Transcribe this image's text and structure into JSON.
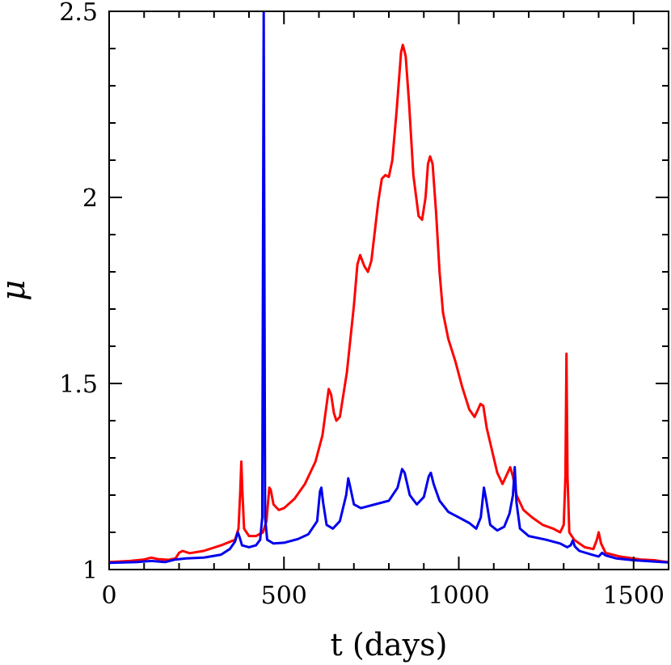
{
  "chart_data": {
    "type": "line",
    "title": "",
    "xlabel": "t (days)",
    "ylabel": "μ",
    "xlim": [
      0,
      1600
    ],
    "ylim": [
      1,
      2.5
    ],
    "x_ticks": [
      0,
      500,
      1000,
      1500
    ],
    "x_tick_labels": [
      "0",
      "500",
      "1000",
      "1500"
    ],
    "y_ticks": [
      1,
      1.5,
      2,
      2.5
    ],
    "y_tick_labels": [
      "1",
      "1.5",
      "2",
      "2.5"
    ],
    "grid": false,
    "legend": "none",
    "series": [
      {
        "color": "#ff0000",
        "points": [
          [
            0,
            1.02
          ],
          [
            60,
            1.023
          ],
          [
            100,
            1.027
          ],
          [
            120,
            1.032
          ],
          [
            140,
            1.028
          ],
          [
            170,
            1.026
          ],
          [
            190,
            1.03
          ],
          [
            200,
            1.045
          ],
          [
            210,
            1.05
          ],
          [
            230,
            1.044
          ],
          [
            270,
            1.05
          ],
          [
            320,
            1.065
          ],
          [
            360,
            1.08
          ],
          [
            370,
            1.11
          ],
          [
            375,
            1.21
          ],
          [
            378,
            1.29
          ],
          [
            381,
            1.21
          ],
          [
            386,
            1.11
          ],
          [
            400,
            1.09
          ],
          [
            420,
            1.09
          ],
          [
            440,
            1.1
          ],
          [
            450,
            1.13
          ],
          [
            458,
            1.22
          ],
          [
            462,
            1.215
          ],
          [
            470,
            1.175
          ],
          [
            485,
            1.16
          ],
          [
            500,
            1.165
          ],
          [
            530,
            1.19
          ],
          [
            560,
            1.23
          ],
          [
            590,
            1.29
          ],
          [
            610,
            1.36
          ],
          [
            620,
            1.43
          ],
          [
            628,
            1.485
          ],
          [
            635,
            1.47
          ],
          [
            643,
            1.42
          ],
          [
            650,
            1.4
          ],
          [
            660,
            1.41
          ],
          [
            680,
            1.53
          ],
          [
            700,
            1.71
          ],
          [
            710,
            1.82
          ],
          [
            718,
            1.845
          ],
          [
            730,
            1.815
          ],
          [
            740,
            1.8
          ],
          [
            750,
            1.83
          ],
          [
            770,
            1.99
          ],
          [
            780,
            2.05
          ],
          [
            790,
            2.06
          ],
          [
            800,
            2.055
          ],
          [
            810,
            2.1
          ],
          [
            822,
            2.23
          ],
          [
            835,
            2.39
          ],
          [
            840,
            2.41
          ],
          [
            848,
            2.38
          ],
          [
            858,
            2.25
          ],
          [
            870,
            2.06
          ],
          [
            885,
            1.95
          ],
          [
            895,
            1.94
          ],
          [
            905,
            2.0
          ],
          [
            912,
            2.09
          ],
          [
            918,
            2.11
          ],
          [
            925,
            2.09
          ],
          [
            935,
            1.96
          ],
          [
            945,
            1.8
          ],
          [
            955,
            1.69
          ],
          [
            970,
            1.62
          ],
          [
            990,
            1.56
          ],
          [
            1010,
            1.49
          ],
          [
            1030,
            1.43
          ],
          [
            1045,
            1.41
          ],
          [
            1055,
            1.43
          ],
          [
            1062,
            1.445
          ],
          [
            1070,
            1.44
          ],
          [
            1080,
            1.38
          ],
          [
            1095,
            1.32
          ],
          [
            1110,
            1.26
          ],
          [
            1125,
            1.23
          ],
          [
            1140,
            1.26
          ],
          [
            1147,
            1.275
          ],
          [
            1155,
            1.25
          ],
          [
            1165,
            1.2
          ],
          [
            1185,
            1.16
          ],
          [
            1210,
            1.14
          ],
          [
            1240,
            1.12
          ],
          [
            1270,
            1.11
          ],
          [
            1290,
            1.1
          ],
          [
            1300,
            1.12
          ],
          [
            1305,
            1.25
          ],
          [
            1308,
            1.58
          ],
          [
            1311,
            1.25
          ],
          [
            1316,
            1.1
          ],
          [
            1330,
            1.08
          ],
          [
            1360,
            1.06
          ],
          [
            1385,
            1.055
          ],
          [
            1395,
            1.08
          ],
          [
            1400,
            1.1
          ],
          [
            1407,
            1.07
          ],
          [
            1420,
            1.045
          ],
          [
            1460,
            1.035
          ],
          [
            1520,
            1.027
          ],
          [
            1560,
            1.025
          ],
          [
            1580,
            1.022
          ],
          [
            1600,
            1.02
          ]
        ]
      },
      {
        "color": "#0000ee",
        "points": [
          [
            0,
            1.018
          ],
          [
            80,
            1.02
          ],
          [
            120,
            1.023
          ],
          [
            160,
            1.02
          ],
          [
            190,
            1.027
          ],
          [
            220,
            1.03
          ],
          [
            270,
            1.032
          ],
          [
            320,
            1.04
          ],
          [
            345,
            1.055
          ],
          [
            360,
            1.075
          ],
          [
            368,
            1.1
          ],
          [
            372,
            1.09
          ],
          [
            380,
            1.065
          ],
          [
            400,
            1.06
          ],
          [
            420,
            1.065
          ],
          [
            432,
            1.08
          ],
          [
            438,
            1.14
          ],
          [
            442,
            2.5
          ],
          [
            446,
            1.14
          ],
          [
            452,
            1.08
          ],
          [
            470,
            1.07
          ],
          [
            500,
            1.072
          ],
          [
            540,
            1.082
          ],
          [
            570,
            1.095
          ],
          [
            595,
            1.13
          ],
          [
            603,
            1.21
          ],
          [
            607,
            1.22
          ],
          [
            612,
            1.18
          ],
          [
            622,
            1.12
          ],
          [
            640,
            1.11
          ],
          [
            660,
            1.13
          ],
          [
            678,
            1.2
          ],
          [
            684,
            1.245
          ],
          [
            690,
            1.22
          ],
          [
            700,
            1.175
          ],
          [
            720,
            1.165
          ],
          [
            760,
            1.175
          ],
          [
            800,
            1.185
          ],
          [
            825,
            1.22
          ],
          [
            838,
            1.27
          ],
          [
            845,
            1.26
          ],
          [
            860,
            1.2
          ],
          [
            880,
            1.175
          ],
          [
            900,
            1.195
          ],
          [
            914,
            1.25
          ],
          [
            920,
            1.26
          ],
          [
            928,
            1.23
          ],
          [
            945,
            1.185
          ],
          [
            970,
            1.155
          ],
          [
            1000,
            1.14
          ],
          [
            1030,
            1.125
          ],
          [
            1050,
            1.11
          ],
          [
            1063,
            1.14
          ],
          [
            1072,
            1.22
          ],
          [
            1078,
            1.19
          ],
          [
            1090,
            1.12
          ],
          [
            1110,
            1.105
          ],
          [
            1130,
            1.115
          ],
          [
            1145,
            1.15
          ],
          [
            1155,
            1.2
          ],
          [
            1160,
            1.275
          ],
          [
            1165,
            1.18
          ],
          [
            1175,
            1.11
          ],
          [
            1200,
            1.09
          ],
          [
            1250,
            1.08
          ],
          [
            1290,
            1.07
          ],
          [
            1310,
            1.06
          ],
          [
            1320,
            1.065
          ],
          [
            1326,
            1.078
          ],
          [
            1332,
            1.062
          ],
          [
            1345,
            1.05
          ],
          [
            1380,
            1.04
          ],
          [
            1400,
            1.035
          ],
          [
            1410,
            1.045
          ],
          [
            1420,
            1.038
          ],
          [
            1450,
            1.03
          ],
          [
            1500,
            1.025
          ],
          [
            1550,
            1.022
          ],
          [
            1600,
            1.019
          ]
        ]
      }
    ]
  }
}
